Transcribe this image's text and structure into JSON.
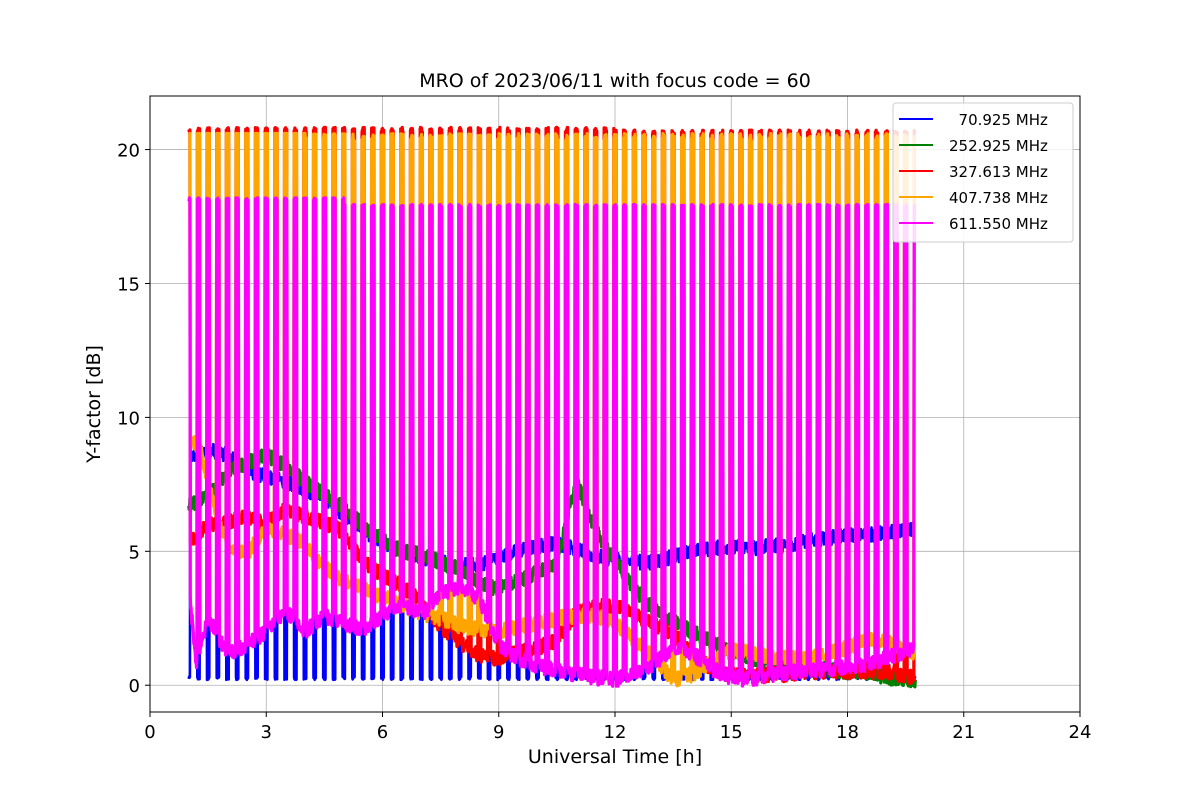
{
  "chart_data": {
    "type": "line",
    "title": "MRO of 2023/06/11 with focus code = 60",
    "xlabel": "Universal Time [h]",
    "ylabel": "Y-factor [dB]",
    "xlim": [
      0,
      24
    ],
    "ylim": [
      -1,
      22
    ],
    "xticks": [
      0,
      3,
      6,
      9,
      12,
      15,
      18,
      21,
      24
    ],
    "yticks": [
      0,
      5,
      10,
      15,
      20
    ],
    "grid": true,
    "legend_position": "top-right",
    "data_range_x": [
      1.0,
      19.75
    ],
    "series": [
      {
        "name": "  70.925 MHz",
        "color": "#0000ff",
        "baseline": [
          [
            1.0,
            8.5
          ],
          [
            1.5,
            8.8
          ],
          [
            2.0,
            8.6
          ],
          [
            2.5,
            8.0
          ],
          [
            3.0,
            7.8
          ],
          [
            3.5,
            7.6
          ],
          [
            4.0,
            7.3
          ],
          [
            4.5,
            6.9
          ],
          [
            5.0,
            6.4
          ],
          [
            5.5,
            5.8
          ],
          [
            6.0,
            5.3
          ],
          [
            6.5,
            5.0
          ],
          [
            7.0,
            4.8
          ],
          [
            7.5,
            4.6
          ],
          [
            8.0,
            4.5
          ],
          [
            8.5,
            4.5
          ],
          [
            9.0,
            4.8
          ],
          [
            9.5,
            5.0
          ],
          [
            10.0,
            5.2
          ],
          [
            10.5,
            5.3
          ],
          [
            11.0,
            5.1
          ],
          [
            11.5,
            4.8
          ],
          [
            12.0,
            4.7
          ],
          [
            12.5,
            4.6
          ],
          [
            13.0,
            4.6
          ],
          [
            13.5,
            4.8
          ],
          [
            14.0,
            5.0
          ],
          [
            14.5,
            5.1
          ],
          [
            15.0,
            5.2
          ],
          [
            15.5,
            5.1
          ],
          [
            16.0,
            5.2
          ],
          [
            16.5,
            5.2
          ],
          [
            17.0,
            5.4
          ],
          [
            17.5,
            5.5
          ],
          [
            18.0,
            5.6
          ],
          [
            18.5,
            5.6
          ],
          [
            19.0,
            5.7
          ],
          [
            19.75,
            5.8
          ]
        ],
        "dip_min": 0.2
      },
      {
        "name": "252.925 MHz",
        "color": "#008000",
        "baseline": [
          [
            1.0,
            6.7
          ],
          [
            1.5,
            7.0
          ],
          [
            2.0,
            8.0
          ],
          [
            2.5,
            8.3
          ],
          [
            3.0,
            8.6
          ],
          [
            3.5,
            8.2
          ],
          [
            4.0,
            7.6
          ],
          [
            4.5,
            7.1
          ],
          [
            5.0,
            6.6
          ],
          [
            5.5,
            6.0
          ],
          [
            6.0,
            5.4
          ],
          [
            6.5,
            5.0
          ],
          [
            7.0,
            4.9
          ],
          [
            7.5,
            4.6
          ],
          [
            8.0,
            4.3
          ],
          [
            8.5,
            3.8
          ],
          [
            9.0,
            3.6
          ],
          [
            9.5,
            3.9
          ],
          [
            10.0,
            4.2
          ],
          [
            10.5,
            4.6
          ],
          [
            11.0,
            7.6
          ],
          [
            11.5,
            5.8
          ],
          [
            12.0,
            4.6
          ],
          [
            12.5,
            3.6
          ],
          [
            13.0,
            2.8
          ],
          [
            13.5,
            2.4
          ],
          [
            14.0,
            2.0
          ],
          [
            14.5,
            1.6
          ],
          [
            15.0,
            1.3
          ],
          [
            15.5,
            1.0
          ],
          [
            16.0,
            0.9
          ],
          [
            16.5,
            0.7
          ],
          [
            17.0,
            0.6
          ],
          [
            17.5,
            0.6
          ],
          [
            18.0,
            0.5
          ],
          [
            18.5,
            0.5
          ],
          [
            19.0,
            0.3
          ],
          [
            19.75,
            0.2
          ]
        ]
      },
      {
        "name": "327.613 MHz",
        "color": "#ff0000",
        "baseline": [
          [
            1.0,
            5.3
          ],
          [
            1.5,
            6.0
          ],
          [
            2.0,
            6.1
          ],
          [
            2.5,
            6.3
          ],
          [
            3.0,
            6.0
          ],
          [
            3.5,
            6.6
          ],
          [
            4.0,
            6.3
          ],
          [
            4.5,
            6.1
          ],
          [
            5.0,
            5.7
          ],
          [
            5.5,
            4.6
          ],
          [
            6.0,
            4.1
          ],
          [
            6.5,
            3.7
          ],
          [
            7.0,
            3.1
          ],
          [
            7.5,
            2.2
          ],
          [
            8.0,
            1.6
          ],
          [
            8.5,
            1.1
          ],
          [
            9.0,
            1.0
          ],
          [
            9.5,
            1.2
          ],
          [
            10.0,
            1.4
          ],
          [
            10.5,
            1.7
          ],
          [
            11.0,
            2.7
          ],
          [
            11.5,
            2.9
          ],
          [
            12.0,
            3.0
          ],
          [
            12.5,
            2.6
          ],
          [
            13.0,
            2.3
          ],
          [
            13.5,
            1.9
          ],
          [
            14.0,
            1.2
          ],
          [
            14.5,
            0.6
          ],
          [
            15.0,
            0.4
          ],
          [
            15.5,
            0.3
          ],
          [
            16.0,
            0.4
          ],
          [
            16.5,
            0.4
          ],
          [
            17.0,
            0.5
          ],
          [
            17.5,
            0.5
          ],
          [
            18.0,
            0.5
          ],
          [
            18.5,
            0.5
          ],
          [
            19.0,
            0.5
          ],
          [
            19.75,
            0.3
          ]
        ],
        "peak": 20.8
      },
      {
        "name": "407.738 MHz",
        "color": "#ffa500",
        "baseline": [
          [
            1.0,
            9.3
          ],
          [
            1.3,
            8.8
          ],
          [
            1.6,
            7.0
          ],
          [
            2.0,
            5.2
          ],
          [
            2.5,
            4.9
          ],
          [
            3.0,
            5.9
          ],
          [
            3.5,
            5.6
          ],
          [
            4.0,
            5.3
          ],
          [
            4.5,
            4.4
          ],
          [
            5.0,
            3.9
          ],
          [
            5.5,
            3.6
          ],
          [
            6.0,
            3.3
          ],
          [
            6.5,
            3.0
          ],
          [
            7.0,
            2.7
          ],
          [
            7.5,
            2.5
          ],
          [
            8.0,
            2.2
          ],
          [
            8.5,
            2.1
          ],
          [
            9.0,
            2.0
          ],
          [
            9.5,
            2.2
          ],
          [
            10.0,
            2.3
          ],
          [
            10.5,
            2.5
          ],
          [
            11.0,
            2.6
          ],
          [
            11.5,
            2.6
          ],
          [
            12.0,
            2.3
          ],
          [
            12.5,
            1.7
          ],
          [
            13.0,
            1.0
          ],
          [
            13.5,
            0.2
          ],
          [
            14.0,
            0.4
          ],
          [
            14.5,
            0.9
          ],
          [
            15.0,
            1.3
          ],
          [
            15.5,
            1.2
          ],
          [
            16.0,
            1.1
          ],
          [
            16.5,
            1.0
          ],
          [
            17.0,
            1.0
          ],
          [
            17.5,
            1.2
          ],
          [
            18.0,
            1.4
          ],
          [
            18.5,
            1.7
          ],
          [
            19.0,
            1.6
          ],
          [
            19.75,
            1.2
          ]
        ],
        "peak": 20.6
      },
      {
        "name": "611.550 MHz",
        "color": "#ff00ff",
        "baseline": [
          [
            1.0,
            3.7
          ],
          [
            1.2,
            0.8
          ],
          [
            1.5,
            2.5
          ],
          [
            2.0,
            1.2
          ],
          [
            2.5,
            1.5
          ],
          [
            3.0,
            2.0
          ],
          [
            3.5,
            2.8
          ],
          [
            4.0,
            2.0
          ],
          [
            4.5,
            2.6
          ],
          [
            5.0,
            2.3
          ],
          [
            5.5,
            2.1
          ],
          [
            6.0,
            2.6
          ],
          [
            6.5,
            3.0
          ],
          [
            7.0,
            2.6
          ],
          [
            7.5,
            3.4
          ],
          [
            8.0,
            3.7
          ],
          [
            8.5,
            3.2
          ],
          [
            9.0,
            1.5
          ],
          [
            9.5,
            1.0
          ],
          [
            10.0,
            0.7
          ],
          [
            10.5,
            0.6
          ],
          [
            11.0,
            0.4
          ],
          [
            11.5,
            0.3
          ],
          [
            12.0,
            0.2
          ],
          [
            12.5,
            0.4
          ],
          [
            13.0,
            0.8
          ],
          [
            13.5,
            1.4
          ],
          [
            14.0,
            1.2
          ],
          [
            14.5,
            0.6
          ],
          [
            15.0,
            0.3
          ],
          [
            15.5,
            0.2
          ],
          [
            16.0,
            0.4
          ],
          [
            16.5,
            0.5
          ],
          [
            17.0,
            0.5
          ],
          [
            17.5,
            0.6
          ],
          [
            18.0,
            0.7
          ],
          [
            18.5,
            0.8
          ],
          [
            19.0,
            1.0
          ],
          [
            19.75,
            1.4
          ]
        ],
        "peak": 18.0
      }
    ],
    "calibration_spikes": {
      "count": 76,
      "x_start": 1.0,
      "x_end": 19.75,
      "red_peak_range": [
        20.6,
        20.8
      ],
      "orange_peak_range": [
        18.0,
        20.6
      ],
      "magenta_peak_range": [
        17.8,
        18.2
      ]
    }
  }
}
